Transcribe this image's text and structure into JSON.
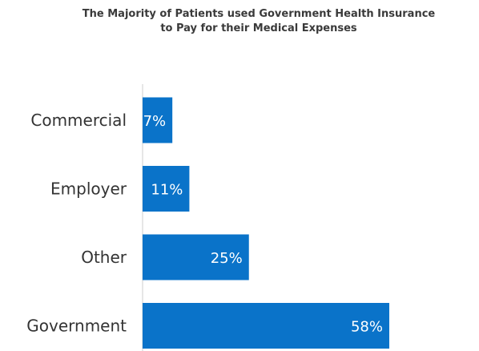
{
  "chart_data": {
    "type": "bar",
    "orientation": "horizontal",
    "title_lines": [
      "The Majority of Patients used Government Health Insurance",
      "to Pay for their Medical Expenses"
    ],
    "categories": [
      "Commercial",
      "Employer",
      "Other",
      "Government"
    ],
    "values": [
      7,
      11,
      25,
      58
    ],
    "value_labels": [
      "7%",
      "11%",
      "25%",
      "58%"
    ],
    "xlabel": "",
    "ylabel": "",
    "xlim": [
      0,
      62
    ],
    "grid": false,
    "legend": "none",
    "colors": {
      "bar": "#0a73c9",
      "axis": "#cccccc",
      "category_text": "#333333",
      "value_text": "#ffffff",
      "title_text": "#3a3a3a"
    }
  }
}
